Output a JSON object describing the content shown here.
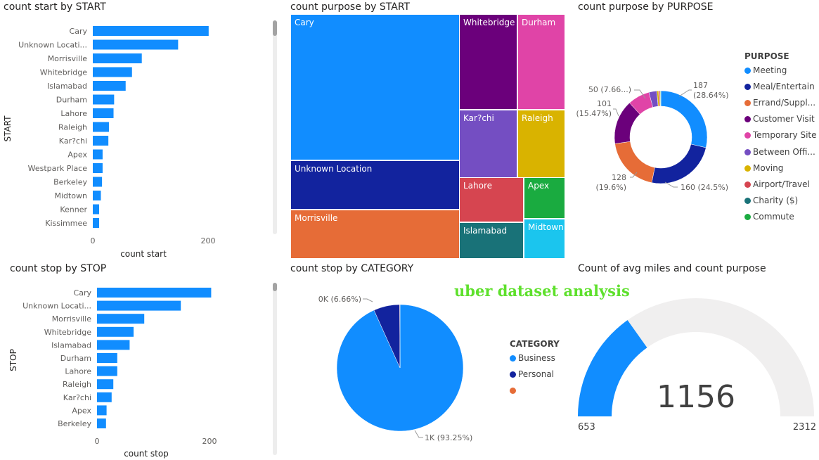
{
  "overlay_title": "uber dataset  analysis",
  "colors": {
    "bar": "#118DFF",
    "scroll_track": "#ededed",
    "scroll_thumb": "#a3a3a3",
    "gauge_fill": "#118DFF",
    "gauge_bg": "#f0efef",
    "purpose": [
      "#118DFF",
      "#12239E",
      "#E66C37",
      "#6B007B",
      "#E044A7",
      "#744EC2",
      "#D9B300",
      "#D64550",
      "#197278",
      "#1AAB40"
    ]
  },
  "chart_data": [
    {
      "id": "start_bar",
      "type": "bar",
      "title": "count start by START",
      "xlabel": "count start",
      "ylabel": "START",
      "xlim": [
        0,
        220
      ],
      "xticks": [
        "0",
        "200"
      ],
      "categories": [
        "Cary",
        "Unknown Locati...",
        "Morrisville",
        "Whitebridge",
        "Islamabad",
        "Durham",
        "Lahore",
        "Raleigh",
        "Kar?chi",
        "Apex",
        "Westpark Place",
        "Berkeley",
        "Midtown",
        "Kenner",
        "Kissimmee"
      ],
      "values": [
        201,
        148,
        85,
        68,
        57,
        37,
        36,
        28,
        27,
        17,
        17,
        16,
        14,
        11,
        11
      ]
    },
    {
      "id": "purpose_treemap",
      "type": "treemap",
      "title": "count purpose by START",
      "categories": [
        "Cary",
        "Unknown Location",
        "Morrisville",
        "Whitebridge",
        "Durham",
        "Kar?chi",
        "Raleigh",
        "Lahore",
        "Apex",
        "Islamabad",
        "Midtown"
      ]
    },
    {
      "id": "purpose_donut",
      "type": "pie",
      "title": "count purpose by PURPOSE",
      "legend_title": "PURPOSE",
      "legend_position": "right",
      "categories": [
        "Meeting",
        "Meal/Entertain",
        "Errand/Suppl...",
        "Customer Visit",
        "Temporary Site",
        "Between Offi...",
        "Moving",
        "Airport/Travel",
        "Charity ($)",
        "Commute"
      ],
      "values": [
        187,
        160,
        128,
        101,
        50,
        18,
        4,
        3,
        1,
        1
      ],
      "labels": [
        "187 (28.64%)",
        "160 (24.5%)",
        "128 (19.6%)",
        "101 (15.47%)",
        "50 (7.66...)"
      ]
    },
    {
      "id": "stop_bar",
      "type": "bar",
      "title": "count stop by STOP",
      "xlabel": "count stop",
      "ylabel": "STOP",
      "xlim": [
        0,
        220
      ],
      "xticks": [
        "0",
        "200"
      ],
      "categories": [
        "Cary",
        "Unknown Locati...",
        "Morrisville",
        "Whitebridge",
        "Islamabad",
        "Durham",
        "Lahore",
        "Raleigh",
        "Kar?chi",
        "Apex",
        "Berkeley"
      ],
      "values": [
        203,
        149,
        84,
        65,
        58,
        36,
        36,
        29,
        26,
        17,
        16
      ]
    },
    {
      "id": "category_pie",
      "type": "pie",
      "title": "count stop by CATEGORY",
      "legend_title": "CATEGORY",
      "legend_position": "right",
      "categories": [
        "Business",
        "Personal",
        ""
      ],
      "values": [
        1078,
        77,
        1
      ],
      "labels": [
        "1K (93.25%)",
        "0K (6.66%)"
      ]
    },
    {
      "id": "miles_gauge",
      "type": "gauge",
      "title": "Count of avg miles and count purpose",
      "value": 1156,
      "value_label": "1156",
      "min": 653,
      "max": 2312,
      "min_label": "653",
      "max_label": "2312"
    }
  ]
}
